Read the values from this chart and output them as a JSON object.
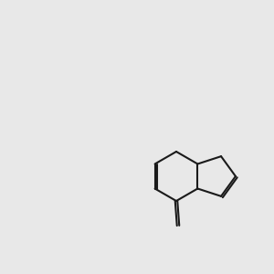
{
  "bg_color": "#e8e8e8",
  "bond_color": "#1a1a1a",
  "N_color": "#0000ff",
  "O_color": "#ff2200",
  "O_red_color": "#cc0000",
  "lw": 1.5,
  "fs": 9.5
}
